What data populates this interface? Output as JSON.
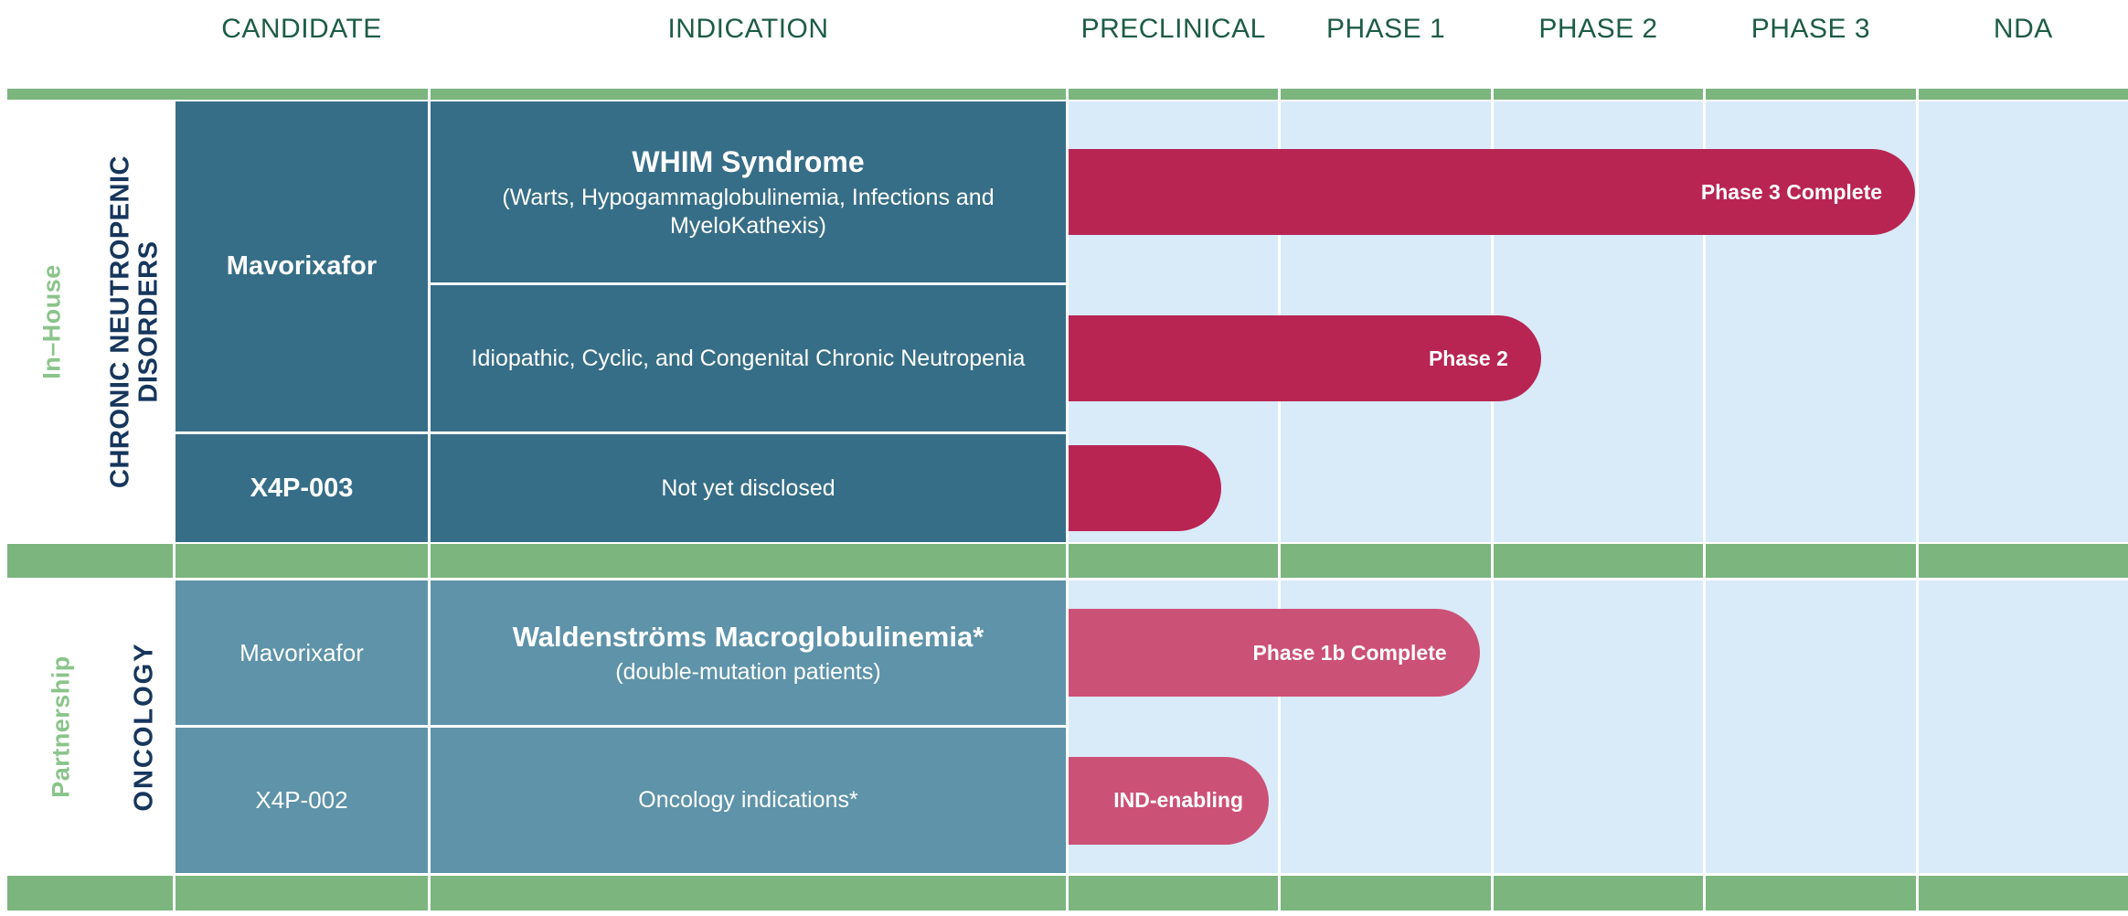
{
  "header": {
    "columns": [
      "CANDIDATE",
      "INDICATION",
      "PRECLINICAL",
      "PHASE 1",
      "PHASE 2",
      "PHASE 3",
      "NDA"
    ]
  },
  "sections": [
    {
      "group_label": "In–House",
      "category_label_line1": "CHRONIC NEUTROPENIC",
      "category_label_line2": "DISORDERS",
      "rows": [
        {
          "candidate": "Mavorixafor",
          "indication_title": "WHIM Syndrome",
          "indication_sub": "(Warts, Hypogammaglobulinemia, Infections and MyeloKathexis)",
          "bar": {
            "label": "Phase 3 Complete",
            "width_pct": 79.9,
            "color": "#b82553"
          }
        },
        {
          "indication_title": "Idiopathic, Cyclic, and Congenital Chronic Neutropenia",
          "bar": {
            "label": "",
            "width_pct": 44.6,
            "color": "#b82553",
            "label_visible": "Phase 2"
          }
        },
        {
          "candidate": "X4P-003",
          "indication_title": "Not yet disclosed",
          "bar": {
            "label": "",
            "width_pct": 14.4,
            "color": "#b82553"
          }
        }
      ]
    },
    {
      "group_label": "Partnership",
      "category_label_line1": "ONCOLOGY",
      "category_label_line2": "",
      "rows": [
        {
          "candidate": "Mavorixafor",
          "indication_title": "Waldenströms Macroglobulinemia*",
          "indication_sub": "(double-mutation patients)",
          "bar": {
            "label": "Phase 1b Complete",
            "width_pct": 38.8,
            "color": "#cc5176"
          }
        },
        {
          "candidate": "X4P-002",
          "indication_title": "Oncology indications*",
          "bar": {
            "label": "IND-enabling",
            "width_pct": 18.9,
            "color": "#cc5176"
          }
        }
      ]
    }
  ],
  "colors": {
    "band_green": "#7cb57e",
    "header_text_green": "#1d5c45",
    "cell_teal_dark": "#376e87",
    "cell_teal_light": "#5e93a9",
    "chart_background_blue": "#d9eaf8",
    "bar_crimson_inhouse": "#b82553",
    "bar_pink_partnership": "#cc5176",
    "side_label_green": "#8bc48b",
    "side_label_navy": "#16365c"
  },
  "chart_data": {
    "type": "bar",
    "orientation": "horizontal-gantt",
    "title": "Drug development pipeline",
    "stage_axis": [
      "PRECLINICAL",
      "PHASE 1",
      "PHASE 2",
      "PHASE 3",
      "NDA"
    ],
    "axis_range_stages": [
      0,
      5
    ],
    "grid": true,
    "series": [
      {
        "section": "In–House",
        "therapeutic_area": "Chronic Neutropenic Disorders",
        "candidate": "Mavorixafor",
        "indication": "WHIM Syndrome (Warts, Hypogammaglobulinemia, Infections and MyeloKathexis)",
        "bar_label": "Phase 3 Complete",
        "progress_end_stage": 4.0,
        "bar_color": "#b82553"
      },
      {
        "section": "In–House",
        "therapeutic_area": "Chronic Neutropenic Disorders",
        "candidate": "Mavorixafor",
        "indication": "Idiopathic, Cyclic, and Congenital Chronic Neutropenia",
        "bar_label": "Phase 2",
        "progress_end_stage": 2.23,
        "bar_color": "#b82553"
      },
      {
        "section": "In–House",
        "therapeutic_area": "Chronic Neutropenic Disorders",
        "candidate": "X4P-003",
        "indication": "Not yet disclosed",
        "bar_label": "",
        "progress_end_stage": 0.72,
        "bar_color": "#b82553"
      },
      {
        "section": "Partnership",
        "therapeutic_area": "Oncology",
        "candidate": "Mavorixafor",
        "indication": "Waldenströms Macroglobulinemia* (double-mutation patients)",
        "bar_label": "Phase 1b Complete",
        "progress_end_stage": 1.94,
        "bar_color": "#cc5176"
      },
      {
        "section": "Partnership",
        "therapeutic_area": "Oncology",
        "candidate": "X4P-002",
        "indication": "Oncology indications*",
        "bar_label": "IND-enabling",
        "progress_end_stage": 0.94,
        "bar_color": "#cc5176"
      }
    ]
  }
}
